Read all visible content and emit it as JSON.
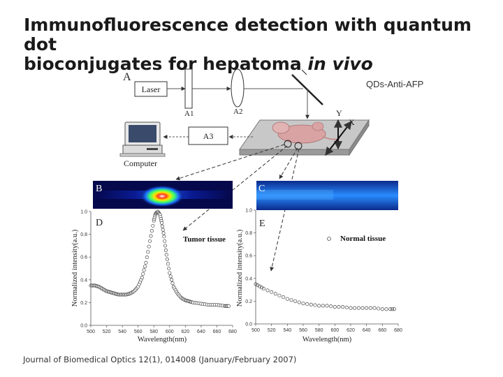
{
  "title": {
    "line1": "Immunofluorescence detection with quantum dot",
    "line2_prefix": "bioconjugates for hepatoma ",
    "line2_italic": "in vivo"
  },
  "setup": {
    "panel_label": "A",
    "laser": "Laser",
    "a1": "A1",
    "a2": "A2",
    "a3": "A3",
    "computer": "Computer",
    "probe": "QDs-Anti-AFP",
    "axis_y": "Y",
    "axis_x": "X"
  },
  "panels": {
    "b": "B",
    "c": "C",
    "d": "D",
    "e": "E"
  },
  "chart_data": [
    {
      "type": "scatter",
      "panel": "D",
      "legend": "Tumor tissue",
      "xlabel": "Wavelength(nm)",
      "ylabel": "Normalized intensity(a.u.)",
      "xlim": [
        500,
        680
      ],
      "ylim": [
        0.0,
        1.0
      ],
      "xticks": [
        500,
        520,
        540,
        560,
        580,
        600,
        620,
        640,
        660,
        680
      ],
      "yticks": [
        0.0,
        0.2,
        0.4,
        0.6,
        0.8,
        1.0
      ],
      "x": [
        500,
        505,
        510,
        515,
        520,
        525,
        530,
        535,
        540,
        545,
        550,
        555,
        560,
        565,
        570,
        575,
        580,
        582,
        585,
        588,
        590,
        593,
        596,
        600,
        605,
        610,
        615,
        620,
        625,
        630,
        640,
        650,
        660,
        670,
        675
      ],
      "y": [
        0.35,
        0.35,
        0.34,
        0.32,
        0.3,
        0.29,
        0.28,
        0.27,
        0.27,
        0.27,
        0.28,
        0.3,
        0.34,
        0.42,
        0.55,
        0.74,
        0.92,
        0.98,
        1.0,
        0.97,
        0.9,
        0.78,
        0.62,
        0.46,
        0.34,
        0.28,
        0.24,
        0.22,
        0.21,
        0.2,
        0.19,
        0.18,
        0.18,
        0.17,
        0.17
      ]
    },
    {
      "type": "scatter",
      "panel": "E",
      "legend": "Normal tissue",
      "xlabel": "Wavelength(nm)",
      "ylabel": "Normalized intensity(a.u.)",
      "xlim": [
        500,
        680
      ],
      "ylim": [
        0.0,
        1.0
      ],
      "xticks": [
        500,
        520,
        540,
        560,
        580,
        600,
        620,
        640,
        660,
        680
      ],
      "yticks": [
        0.0,
        0.2,
        0.4,
        0.6,
        0.8,
        1.0
      ],
      "x": [
        500,
        505,
        510,
        520,
        530,
        540,
        550,
        560,
        570,
        580,
        590,
        600,
        610,
        620,
        630,
        640,
        650,
        660,
        670,
        675
      ],
      "y": [
        0.35,
        0.33,
        0.31,
        0.28,
        0.25,
        0.22,
        0.2,
        0.18,
        0.17,
        0.16,
        0.16,
        0.15,
        0.15,
        0.14,
        0.14,
        0.14,
        0.14,
        0.13,
        0.13,
        0.13
      ]
    }
  ],
  "citation": "Journal of Biomedical Optics 12(1), 014008 (January/February 2007)",
  "colors": {
    "arrow": "#333333",
    "stage": "#bfbfbf",
    "mouse": "#d9a3a3",
    "spectrum_b_bg": "#05084a",
    "spectrum_c_bg": "#0a2a8a"
  }
}
